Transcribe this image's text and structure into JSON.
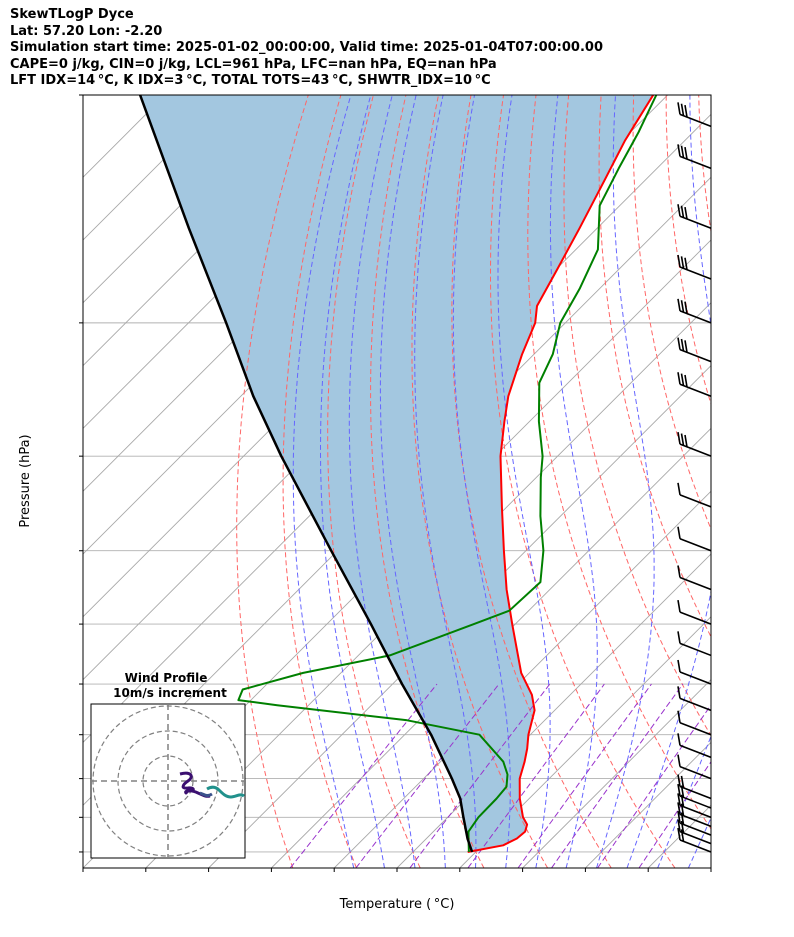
{
  "header": {
    "line1": "SkewTLogP Dyce",
    "line2": "Lat: 57.20   Lon: -2.20",
    "line3": "Simulation start time: 2025-01-02_00:00:00, Valid time: 2025-01-04T07:00:00.00",
    "line4": "CAPE=0 j/kg, CIN=0 j/kg, LCL=961 hPa, LFC=nan hPa, EQ=nan hPa",
    "line5": "LFT IDX=14 °C, K IDX=3 °C, TOTAL TOTS=43 °C, SHWTR_IDX=10 °C"
  },
  "chart_data": {
    "type": "line",
    "xlabel": "Temperature ( °C)",
    "ylabel": "Pressure (hPa)",
    "xlim": [
      -60,
      40
    ],
    "ylim": [
      1050,
      100
    ],
    "y_scale": "log",
    "xticks": [
      -60,
      -50,
      -40,
      -30,
      -20,
      -10,
      0,
      10,
      20,
      30,
      40
    ],
    "yticks": [
      100,
      200,
      300,
      400,
      500,
      600,
      700,
      800,
      900,
      1000
    ],
    "grid": true,
    "colors": {
      "temperature": "#ff0000",
      "dewpoint": "#008000",
      "parcel": "#000000",
      "cape_fill": "#a3c7e0",
      "dry_adiabat": "#ff6666",
      "moist_adiabat": "#6666ff",
      "mixing_ratio": "#9933cc",
      "isotherm": "#aaaaaa",
      "wind_barb": "#000000"
    },
    "series": [
      {
        "key": "temperature",
        "points": [
          [
            1000,
            -1.3
          ],
          [
            980,
            3.3
          ],
          [
            960,
            4.4
          ],
          [
            940,
            4.6
          ],
          [
            920,
            3.8
          ],
          [
            900,
            2.0
          ],
          [
            850,
            -1.5
          ],
          [
            800,
            -4.7
          ],
          [
            760,
            -6.6
          ],
          [
            730,
            -8.3
          ],
          [
            700,
            -10.3
          ],
          [
            650,
            -13.2
          ],
          [
            620,
            -16.1
          ],
          [
            580,
            -21.3
          ],
          [
            500,
            -30.5
          ],
          [
            450,
            -36.9
          ],
          [
            400,
            -43.5
          ],
          [
            350,
            -50.8
          ],
          [
            300,
            -59.1
          ],
          [
            270,
            -64.0
          ],
          [
            250,
            -67.4
          ],
          [
            220,
            -71.9
          ],
          [
            200,
            -74.8
          ],
          [
            190,
            -77.2
          ],
          [
            170,
            -79.8
          ],
          [
            150,
            -82.8
          ],
          [
            130,
            -86.4
          ],
          [
            115,
            -89.5
          ],
          [
            100,
            -92.3
          ]
        ]
      },
      {
        "key": "dewpoint",
        "points": [
          [
            1000,
            -1.1
          ],
          [
            960,
            -3.3
          ],
          [
            940,
            -4.4
          ],
          [
            900,
            -5.1
          ],
          [
            850,
            -5.2
          ],
          [
            820,
            -5.5
          ],
          [
            790,
            -7.3
          ],
          [
            760,
            -10.0
          ],
          [
            700,
            -18.1
          ],
          [
            670,
            -31.9
          ],
          [
            640,
            -55.0
          ],
          [
            630,
            -62.0
          ],
          [
            610,
            -63.0
          ],
          [
            580,
            -56.0
          ],
          [
            550,
            -45.0
          ],
          [
            500,
            -36.6
          ],
          [
            480,
            -33.1
          ],
          [
            440,
            -32.7
          ],
          [
            400,
            -37.2
          ],
          [
            360,
            -43.2
          ],
          [
            320,
            -49.3
          ],
          [
            300,
            -52.4
          ],
          [
            270,
            -58.5
          ],
          [
            240,
            -64.6
          ],
          [
            220,
            -67.0
          ],
          [
            200,
            -70.8
          ],
          [
            180,
            -73.2
          ],
          [
            160,
            -76.5
          ],
          [
            140,
            -83.2
          ],
          [
            125,
            -86.1
          ],
          [
            112,
            -88.7
          ],
          [
            100,
            -91.8
          ]
        ]
      },
      {
        "key": "parcel",
        "points": [
          [
            1000,
            -0.6
          ],
          [
            961,
            -3.4
          ],
          [
            900,
            -7.5
          ],
          [
            850,
            -11.0
          ],
          [
            800,
            -15.5
          ],
          [
            700,
            -25.8
          ],
          [
            600,
            -38.5
          ],
          [
            500,
            -53.0
          ],
          [
            400,
            -71.0
          ],
          [
            300,
            -94.0
          ],
          [
            250,
            -108.0
          ],
          [
            200,
            -124.0
          ],
          [
            150,
            -145.0
          ],
          [
            100,
            -174.0
          ]
        ]
      }
    ],
    "wind_profile": {
      "title": "Wind Profile",
      "subtitle": "10m/s increment",
      "rings_ms": [
        10,
        20,
        30
      ]
    }
  }
}
